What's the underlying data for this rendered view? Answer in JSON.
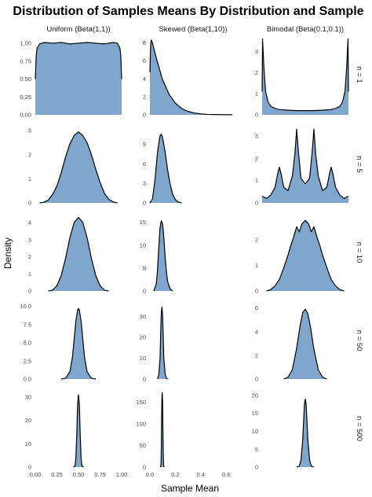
{
  "chart_data": {
    "type": "area",
    "title": "Distribution of Samples Means By Distribution and Sample",
    "xlabel": "Sample Mean",
    "ylabel": "Density",
    "grid": false,
    "legend": "none",
    "fill_color": "#7fa7cd",
    "line_color": "#000000",
    "columns": [
      {
        "label": "Uniform (Beta(1,1))",
        "xlim": [
          0,
          1
        ],
        "xticks": [
          "0.00",
          "0.25",
          "0.50",
          "0.75",
          "1.00"
        ],
        "xtick_values": [
          0,
          0.25,
          0.5,
          0.75,
          1.0
        ]
      },
      {
        "label": "Skewed (Beta(1,10))",
        "xlim": [
          0,
          0.68
        ],
        "xticks": [
          "0.0",
          "0.2",
          "0.4",
          "0.6"
        ],
        "xtick_values": [
          0,
          0.2,
          0.4,
          0.6
        ]
      },
      {
        "label": "Bimodal (Beta(0.1,0.1))",
        "xlim": [
          0,
          1
        ],
        "xticks": [],
        "xtick_values": []
      }
    ],
    "rows": [
      {
        "label": "n = 1"
      },
      {
        "label": "n = 5"
      },
      {
        "label": "n = 10"
      },
      {
        "label": "n = 50"
      },
      {
        "label": "n = 500"
      }
    ],
    "panels": [
      [
        {
          "ylim": [
            0,
            1.12
          ],
          "yticks": [
            0,
            0.25,
            0.5,
            0.75,
            1.0
          ],
          "ytick_labels": [
            "0.00",
            "0.25",
            "0.50",
            "0.75",
            "1.00"
          ],
          "x": [
            0,
            0.01,
            0.02,
            0.05,
            0.1,
            0.2,
            0.3,
            0.4,
            0.5,
            0.6,
            0.7,
            0.8,
            0.9,
            0.95,
            0.98,
            0.99,
            1.0
          ],
          "y": [
            0.5,
            0.82,
            0.93,
            0.99,
            1.01,
            1.0,
            1.01,
            0.99,
            1.0,
            1.01,
            1.0,
            0.99,
            1.01,
            1.0,
            0.93,
            0.82,
            0.5
          ]
        },
        {
          "ylim": [
            0,
            8.9
          ],
          "yticks": [
            0,
            2,
            4,
            6,
            8
          ],
          "ytick_labels": [
            "0",
            "2",
            "4",
            "6",
            "8"
          ],
          "x": [
            0,
            0.005,
            0.01,
            0.02,
            0.05,
            0.1,
            0.15,
            0.2,
            0.25,
            0.3,
            0.35,
            0.4,
            0.45,
            0.5,
            0.55,
            0.6,
            0.65
          ],
          "y": [
            4.7,
            7.5,
            8.3,
            8.0,
            6.3,
            3.9,
            2.3,
            1.3,
            0.7,
            0.38,
            0.2,
            0.1,
            0.05,
            0.03,
            0.02,
            0.01,
            0.01
          ]
        },
        {
          "ylim": [
            0,
            3.8
          ],
          "yticks": [
            0,
            1,
            2,
            3
          ],
          "ytick_labels": [
            "0",
            "1",
            "2",
            "3"
          ],
          "x": [
            0,
            0.005,
            0.02,
            0.04,
            0.07,
            0.1,
            0.15,
            0.2,
            0.3,
            0.4,
            0.5,
            0.6,
            0.7,
            0.8,
            0.85,
            0.9,
            0.93,
            0.96,
            0.98,
            0.995,
            1.0
          ],
          "y": [
            1.1,
            3.6,
            2.3,
            1.1,
            0.6,
            0.4,
            0.3,
            0.25,
            0.22,
            0.2,
            0.2,
            0.2,
            0.22,
            0.25,
            0.3,
            0.4,
            0.6,
            1.1,
            2.3,
            3.6,
            1.1
          ]
        }
      ],
      [
        {
          "ylim": [
            0,
            3.2
          ],
          "yticks": [
            0,
            1,
            2,
            3
          ],
          "ytick_labels": [
            "0",
            "1",
            "2",
            "3"
          ],
          "x": [
            0.05,
            0.1,
            0.15,
            0.2,
            0.25,
            0.3,
            0.35,
            0.4,
            0.45,
            0.5,
            0.55,
            0.6,
            0.65,
            0.7,
            0.75,
            0.8,
            0.85,
            0.9,
            0.95
          ],
          "y": [
            0.0,
            0.03,
            0.12,
            0.35,
            0.7,
            1.25,
            1.9,
            2.45,
            2.8,
            2.95,
            2.8,
            2.5,
            2.0,
            1.4,
            0.85,
            0.4,
            0.15,
            0.04,
            0.0
          ]
        },
        {
          "ylim": [
            0,
            11.8
          ],
          "yticks": [
            0,
            3,
            6,
            9
          ],
          "ytick_labels": [
            "0",
            "3",
            "6",
            "9"
          ],
          "x": [
            0.0,
            0.02,
            0.04,
            0.06,
            0.08,
            0.09,
            0.1,
            0.12,
            0.14,
            0.16,
            0.18,
            0.2,
            0.22,
            0.25
          ],
          "y": [
            0.0,
            0.6,
            3.5,
            7.8,
            10.3,
            10.5,
            10.0,
            7.8,
            5.0,
            2.8,
            1.3,
            0.5,
            0.15,
            0.0
          ]
        },
        {
          "ylim": [
            0,
            3.45
          ],
          "yticks": [
            0,
            1,
            2,
            3
          ],
          "ytick_labels": [
            "0",
            "1",
            "2",
            "3"
          ],
          "x": [
            0.0,
            0.05,
            0.1,
            0.15,
            0.18,
            0.2,
            0.22,
            0.25,
            0.3,
            0.35,
            0.38,
            0.4,
            0.42,
            0.45,
            0.5,
            0.55,
            0.58,
            0.6,
            0.62,
            0.65,
            0.7,
            0.75,
            0.78,
            0.8,
            0.82,
            0.85,
            0.9,
            0.95,
            1.0
          ],
          "y": [
            0.3,
            0.2,
            0.35,
            0.7,
            1.3,
            1.6,
            1.3,
            0.7,
            0.55,
            1.2,
            2.2,
            3.3,
            2.3,
            1.1,
            0.85,
            1.1,
            2.3,
            3.3,
            2.2,
            1.2,
            0.55,
            0.7,
            1.3,
            1.6,
            1.3,
            0.7,
            0.35,
            0.2,
            0.3
          ]
        }
      ],
      [
        {
          "ylim": [
            0,
            4.5
          ],
          "yticks": [
            0,
            1,
            2,
            3,
            4
          ],
          "ytick_labels": [
            "0",
            "1",
            "2",
            "3",
            "4"
          ],
          "x": [
            0.15,
            0.2,
            0.25,
            0.3,
            0.35,
            0.4,
            0.45,
            0.5,
            0.55,
            0.6,
            0.65,
            0.7,
            0.75,
            0.8,
            0.85
          ],
          "y": [
            0.0,
            0.05,
            0.3,
            0.9,
            1.9,
            3.1,
            4.0,
            4.3,
            4.0,
            3.1,
            1.9,
            0.9,
            0.3,
            0.05,
            0.0
          ]
        },
        {
          "ylim": [
            0,
            16.8
          ],
          "yticks": [
            0,
            5,
            10,
            15
          ],
          "ytick_labels": [
            "0",
            "5",
            "10",
            "15"
          ],
          "x": [
            0.03,
            0.05,
            0.06,
            0.07,
            0.08,
            0.09,
            0.1,
            0.11,
            0.12,
            0.13,
            0.14,
            0.16,
            0.18
          ],
          "y": [
            0.0,
            1.5,
            4.5,
            9.5,
            13.8,
            15.3,
            14.6,
            11.5,
            7.5,
            4.2,
            2.0,
            0.4,
            0.0
          ]
        },
        {
          "ylim": [
            0,
            3.0
          ],
          "yticks": [
            0,
            1,
            2
          ],
          "ytick_labels": [
            "0",
            "1",
            "2"
          ],
          "x": [
            0.05,
            0.1,
            0.15,
            0.2,
            0.25,
            0.3,
            0.33,
            0.36,
            0.4,
            0.43,
            0.46,
            0.5,
            0.54,
            0.57,
            0.6,
            0.64,
            0.67,
            0.7,
            0.75,
            0.8,
            0.85,
            0.9,
            0.95
          ],
          "y": [
            0.0,
            0.05,
            0.2,
            0.45,
            0.9,
            1.4,
            1.75,
            2.05,
            2.5,
            2.3,
            2.6,
            2.75,
            2.6,
            2.3,
            2.5,
            2.05,
            1.75,
            1.4,
            0.9,
            0.45,
            0.2,
            0.05,
            0.0
          ]
        }
      ],
      [
        {
          "ylim": [
            0,
            10.6
          ],
          "yticks": [
            0,
            2.5,
            5,
            7.5,
            10
          ],
          "ytick_labels": [
            "0.0",
            "2.5",
            "5.0",
            "7.5",
            "10.0"
          ],
          "x": [
            0.3,
            0.35,
            0.4,
            0.43,
            0.45,
            0.47,
            0.49,
            0.5,
            0.51,
            0.53,
            0.55,
            0.57,
            0.6,
            0.65,
            0.7
          ],
          "y": [
            0.0,
            0.1,
            1.0,
            3.0,
            5.5,
            8.0,
            9.5,
            9.7,
            9.5,
            8.0,
            5.5,
            3.0,
            1.0,
            0.1,
            0.0
          ]
        },
        {
          "ylim": [
            0,
            37
          ],
          "yticks": [
            0,
            10,
            20,
            30
          ],
          "ytick_labels": [
            "0",
            "10",
            "20",
            "30"
          ],
          "x": [
            0.06,
            0.07,
            0.08,
            0.085,
            0.09,
            0.095,
            0.1,
            0.105,
            0.11,
            0.12,
            0.13,
            0.14
          ],
          "y": [
            0.0,
            2.0,
            10.0,
            22.0,
            32.0,
            34.5,
            31.0,
            20.0,
            10.0,
            2.5,
            0.3,
            0.0
          ]
        },
        {
          "ylim": [
            0,
            6.5
          ],
          "yticks": [
            0,
            2,
            4,
            6
          ],
          "ytick_labels": [
            "0",
            "2",
            "4",
            "6"
          ],
          "x": [
            0.25,
            0.3,
            0.35,
            0.4,
            0.44,
            0.47,
            0.5,
            0.53,
            0.56,
            0.6,
            0.65,
            0.7,
            0.75
          ],
          "y": [
            0.0,
            0.15,
            0.8,
            2.6,
            4.5,
            5.6,
            5.9,
            5.5,
            4.4,
            2.5,
            0.8,
            0.15,
            0.0
          ]
        }
      ],
      [
        {
          "ylim": [
            0,
            33
          ],
          "yticks": [
            0,
            10,
            20,
            30
          ],
          "ytick_labels": [
            "0",
            "10",
            "20",
            "30"
          ],
          "x": [
            0.44,
            0.46,
            0.47,
            0.48,
            0.49,
            0.5,
            0.51,
            0.52,
            0.53,
            0.54,
            0.56
          ],
          "y": [
            0.0,
            0.5,
            4.0,
            14.0,
            27.0,
            31.0,
            27.0,
            14.0,
            4.0,
            0.5,
            0.0
          ]
        },
        {
          "ylim": [
            0,
            178
          ],
          "yticks": [
            0,
            50,
            100,
            150
          ],
          "ytick_labels": [
            "0",
            "50",
            "100",
            "150"
          ],
          "x": [
            0.085,
            0.088,
            0.09,
            0.0925,
            0.095,
            0.0975,
            0.1,
            0.1025,
            0.105,
            0.108,
            0.112
          ],
          "y": [
            0.0,
            10.0,
            45.0,
            120.0,
            165.0,
            172.0,
            150.0,
            90.0,
            30.0,
            5.0,
            0.0
          ]
        },
        {
          "ylim": [
            0,
            21.5
          ],
          "yticks": [
            0,
            5,
            10,
            15,
            20
          ],
          "ytick_labels": [
            "0",
            "5",
            "10",
            "15",
            "20"
          ],
          "x": [
            0.4,
            0.43,
            0.45,
            0.47,
            0.48,
            0.49,
            0.5,
            0.51,
            0.52,
            0.53,
            0.55,
            0.57,
            0.6
          ],
          "y": [
            0.0,
            0.3,
            2.0,
            7.5,
            12.5,
            17.5,
            19.0,
            17.5,
            12.5,
            7.5,
            2.0,
            0.3,
            0.0
          ]
        }
      ]
    ],
    "bottom_xticks": {
      "0": [
        "0.00",
        "0.25",
        "0.50",
        "0.75",
        "1.00"
      ],
      "1": [
        "0.0",
        "0.2",
        "0.4",
        "0.6"
      ]
    }
  }
}
